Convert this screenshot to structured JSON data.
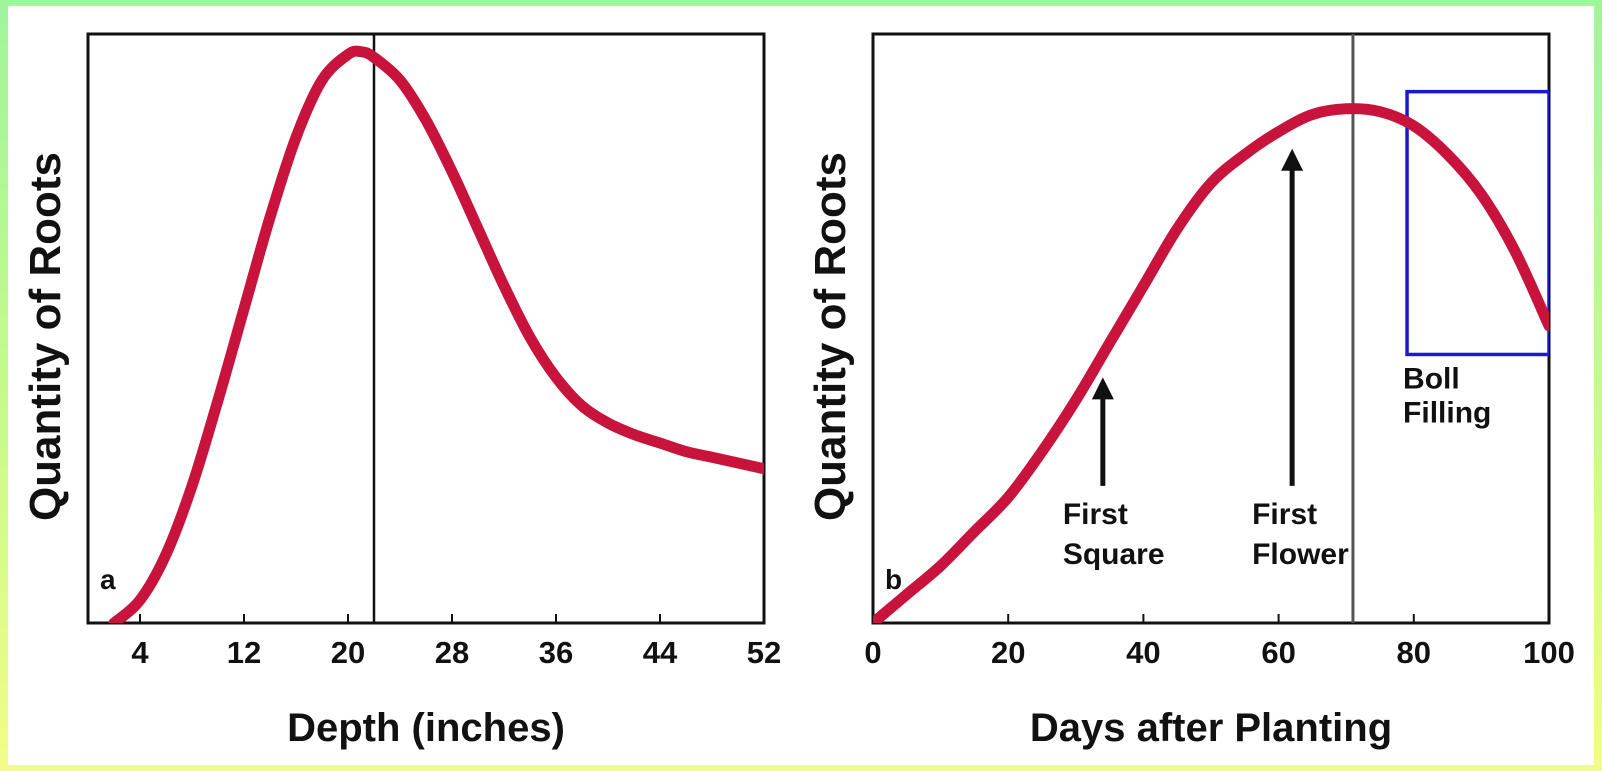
{
  "chart_data": [
    {
      "type": "line",
      "panel_letter": "a",
      "xlabel": "Depth (inches)",
      "ylabel": "Quantity of Roots",
      "x_ticks": [
        4,
        12,
        20,
        28,
        36,
        44,
        52
      ],
      "xlim": [
        0,
        52
      ],
      "ylim": [
        0,
        1
      ],
      "y_ticks_shown": false,
      "grid": false,
      "series": [
        {
          "color": "#c8143c",
          "points": [
            [
              2,
              0.0
            ],
            [
              4,
              0.04
            ],
            [
              6,
              0.12
            ],
            [
              8,
              0.24
            ],
            [
              10,
              0.39
            ],
            [
              12,
              0.55
            ],
            [
              14,
              0.71
            ],
            [
              16,
              0.85
            ],
            [
              18,
              0.95
            ],
            [
              20,
              0.995
            ],
            [
              21,
              1.0
            ],
            [
              22,
              0.99
            ],
            [
              24,
              0.95
            ],
            [
              26,
              0.88
            ],
            [
              28,
              0.79
            ],
            [
              30,
              0.69
            ],
            [
              32,
              0.59
            ],
            [
              34,
              0.5
            ],
            [
              36,
              0.43
            ],
            [
              38,
              0.38
            ],
            [
              40,
              0.35
            ],
            [
              42,
              0.33
            ],
            [
              44,
              0.315
            ],
            [
              46,
              0.3
            ],
            [
              48,
              0.29
            ],
            [
              50,
              0.28
            ],
            [
              52,
              0.27
            ]
          ]
        }
      ],
      "vertical_lines": [
        22
      ]
    },
    {
      "type": "line",
      "panel_letter": "b",
      "xlabel": "Days after Planting",
      "ylabel": "Quantity of Roots",
      "x_ticks": [
        "0",
        "20",
        "40",
        "60",
        "80",
        "100"
      ],
      "xlim": [
        0,
        100
      ],
      "ylim": [
        0,
        1
      ],
      "y_ticks_shown": false,
      "grid": false,
      "series": [
        {
          "color": "#c8143c",
          "points": [
            [
              0,
              0.0
            ],
            [
              5,
              0.05
            ],
            [
              10,
              0.1
            ],
            [
              15,
              0.16
            ],
            [
              20,
              0.22
            ],
            [
              25,
              0.3
            ],
            [
              30,
              0.39
            ],
            [
              35,
              0.49
            ],
            [
              40,
              0.59
            ],
            [
              45,
              0.69
            ],
            [
              50,
              0.77
            ],
            [
              55,
              0.82
            ],
            [
              60,
              0.86
            ],
            [
              65,
              0.89
            ],
            [
              70,
              0.9
            ],
            [
              75,
              0.895
            ],
            [
              80,
              0.87
            ],
            [
              85,
              0.82
            ],
            [
              90,
              0.75
            ],
            [
              95,
              0.65
            ],
            [
              100,
              0.52
            ]
          ]
        }
      ],
      "vertical_lines": [
        71
      ],
      "annotations": [
        {
          "lines": [
            "First",
            "Square"
          ],
          "x": 34,
          "arrow_tip_y": 0.43,
          "arrow_tail_y": 0.24
        },
        {
          "lines": [
            "First",
            "Flower"
          ],
          "x": 62,
          "arrow_tip_y": 0.83,
          "arrow_tail_y": 0.24
        }
      ],
      "region": {
        "label_lines": [
          "Boll",
          "Filling"
        ],
        "x_start": 79,
        "x_end": 100,
        "y_top": 0.93,
        "y_bottom": 0.47,
        "color": "#1a1acc"
      }
    }
  ]
}
